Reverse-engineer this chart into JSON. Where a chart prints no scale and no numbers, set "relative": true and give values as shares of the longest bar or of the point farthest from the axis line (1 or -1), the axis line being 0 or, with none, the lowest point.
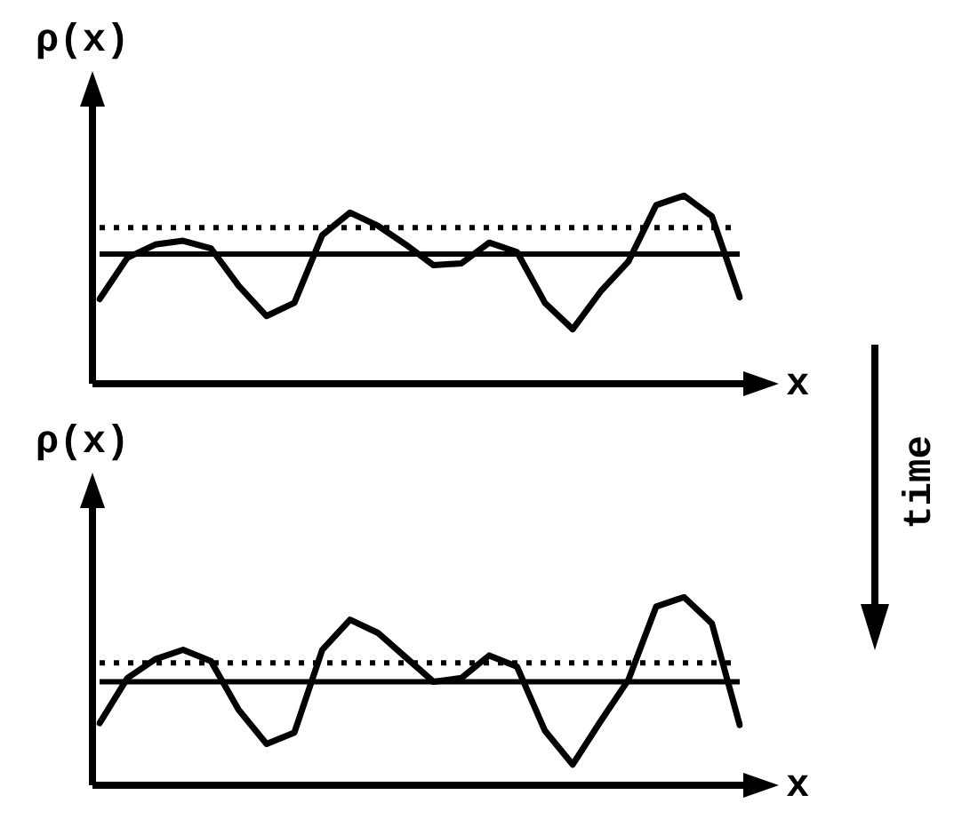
{
  "chart_data": [
    {
      "type": "line",
      "relative": true,
      "ylabel": "ρ(x)",
      "xlabel": "x",
      "categories": [
        null,
        null,
        null,
        null,
        null,
        null,
        null,
        null,
        null,
        null,
        null,
        null,
        null,
        null,
        null,
        null,
        null,
        null,
        null,
        null,
        null,
        null,
        null,
        null
      ],
      "series": [
        {
          "color": "#000000",
          "values": [
            0.45,
            0.67,
            0.74,
            0.76,
            0.72,
            0.52,
            0.36,
            0.43,
            0.79,
            0.91,
            0.84,
            0.74,
            0.63,
            0.64,
            0.75,
            0.7,
            0.43,
            0.29,
            0.49,
            0.65,
            0.95,
            1.0,
            0.89,
            0.46
          ]
        }
      ],
      "ref_lines": [
        {
          "axis": "y",
          "value": 0.69,
          "color": "#000000",
          "line_style": "solid"
        },
        {
          "axis": "y",
          "value": 0.83,
          "color": "#000000",
          "line_style": "dotted"
        }
      ],
      "annotations": [
        "time"
      ],
      "legend": false,
      "marker": "none",
      "line_style": "solid"
    },
    {
      "type": "line",
      "relative": true,
      "ylabel": "ρ(x)",
      "xlabel": "x",
      "categories": [
        null,
        null,
        null,
        null,
        null,
        null,
        null,
        null,
        null,
        null,
        null,
        null,
        null,
        null,
        null,
        null,
        null,
        null,
        null,
        null,
        null,
        null,
        null,
        null
      ],
      "series": [
        {
          "color": "#000000",
          "values": [
            0.33,
            0.57,
            0.67,
            0.72,
            0.66,
            0.4,
            0.22,
            0.28,
            0.72,
            0.88,
            0.81,
            0.68,
            0.55,
            0.57,
            0.69,
            0.63,
            0.29,
            0.11,
            0.34,
            0.56,
            0.95,
            1.0,
            0.86,
            0.32
          ]
        }
      ],
      "ref_lines": [
        {
          "axis": "y",
          "value": 0.55,
          "color": "#000000",
          "line_style": "solid"
        },
        {
          "axis": "y",
          "value": 0.65,
          "color": "#000000",
          "line_style": "dotted"
        }
      ],
      "legend": false,
      "marker": "none",
      "line_style": "solid"
    }
  ]
}
